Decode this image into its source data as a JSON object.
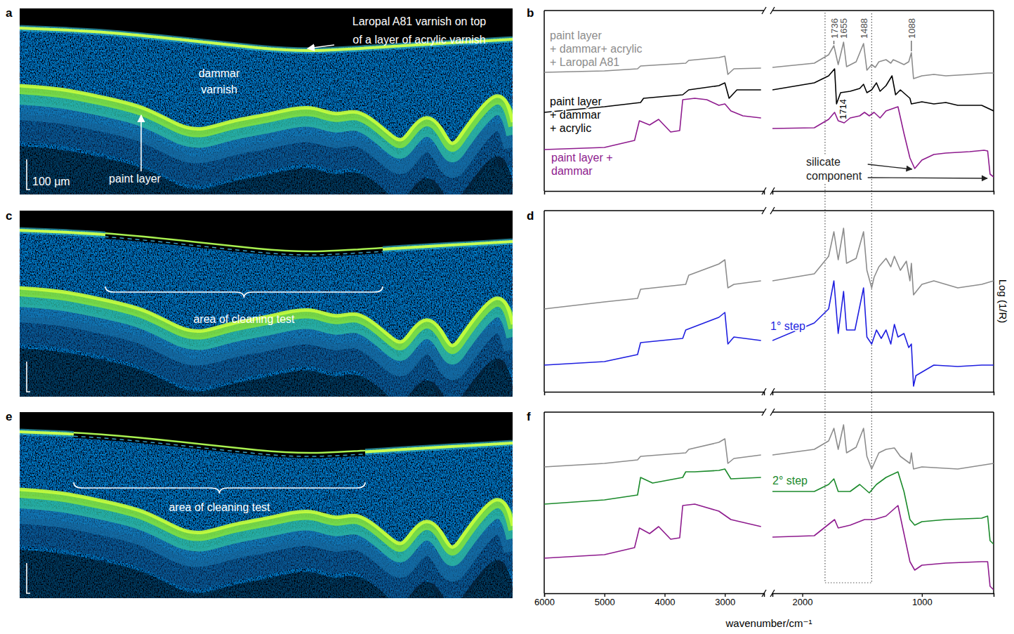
{
  "figure": {
    "highlight_region": [
      1810,
      1420
    ]
  },
  "images": [
    {
      "letter": "a",
      "labels": [
        "Laropal A81 varnish on top\nof a layer of acrylic varnish",
        "dammar\nvarnish",
        "paint layer"
      ],
      "scale_bar": "100 µm"
    },
    {
      "letter": "c",
      "bracket_label": "area of cleaning test"
    },
    {
      "letter": "e",
      "bracket_label": "area of cleaning test"
    }
  ],
  "chart_data": [
    {
      "type": "line",
      "letter": "b",
      "xlim": [
        6000,
        400
      ],
      "x_break": [
        2350,
        2250
      ],
      "ylim": [
        0,
        257
      ],
      "tick_labels": false,
      "annotations": [
        {
          "x": 1736,
          "curve": 0,
          "color": "#505050"
        },
        {
          "x": 1655,
          "curve": 0,
          "color": "#505050"
        },
        {
          "x": 1488,
          "curve": 0,
          "color": "#505050"
        },
        {
          "x": 1088,
          "curve": 0,
          "color": "#505050"
        },
        {
          "x": 1714,
          "curve": 1,
          "color": "#000000"
        }
      ],
      "callout": {
        "text": "silicate\ncomponent",
        "points_to": [
          1060,
          430
        ]
      },
      "series": [
        {
          "name": "paint layer\n+ dammar+ acrylic\n+ Laropal A81",
          "color": "#8c8c8c",
          "x": [
            6000,
            5000,
            4450,
            4400,
            3650,
            3600,
            3100,
            3000,
            2950,
            2850,
            2400,
            2250,
            1900,
            1780,
            1736,
            1700,
            1655,
            1630,
            1550,
            1488,
            1460,
            1420,
            1390,
            1360,
            1300,
            1260,
            1240,
            1200,
            1150,
            1110,
            1088,
            1070,
            1000,
            900,
            800,
            600,
            450,
            400
          ],
          "values": [
            169,
            171,
            174,
            178,
            182,
            186,
            190,
            192,
            166,
            174,
            175,
            176,
            182,
            194,
            207,
            180,
            212,
            177,
            184,
            210,
            172,
            180,
            176,
            184,
            187,
            182,
            187,
            184,
            180,
            184,
            197,
            160,
            164,
            166,
            164,
            166,
            168,
            168
          ]
        },
        {
          "name": "paint layer\n+ dammar\n+ acrylic",
          "color": "#000000",
          "x": [
            6000,
            5000,
            4400,
            4350,
            3700,
            3600,
            3100,
            3000,
            2930,
            2800,
            2400,
            2250,
            1900,
            1780,
            1730,
            1714,
            1680,
            1600,
            1520,
            1488,
            1460,
            1420,
            1380,
            1350,
            1300,
            1250,
            1220,
            1180,
            1100,
            1088,
            1000,
            900,
            800,
            700,
            500,
            400
          ],
          "values": [
            112,
            120,
            126,
            132,
            137,
            144,
            150,
            154,
            132,
            144,
            144,
            144,
            154,
            164,
            174,
            124,
            140,
            142,
            146,
            152,
            140,
            144,
            154,
            142,
            150,
            164,
            137,
            144,
            132,
            124,
            127,
            124,
            126,
            122,
            122,
            114
          ]
        },
        {
          "name": "paint layer +\ndammar",
          "color": "#8e1b8e",
          "x": [
            6000,
            5000,
            4500,
            4420,
            4250,
            4100,
            3900,
            3750,
            3700,
            3500,
            3300,
            3100,
            3000,
            2900,
            2700,
            2400,
            2250,
            1900,
            1780,
            1730,
            1700,
            1650,
            1600,
            1520,
            1480,
            1440,
            1400,
            1350,
            1300,
            1250,
            1200,
            1150,
            1100,
            1060,
            1000,
            900,
            800,
            600,
            480,
            450,
            430,
            400
          ],
          "values": [
            59,
            62,
            72,
            100,
            94,
            102,
            84,
            86,
            130,
            132,
            130,
            122,
            124,
            114,
            107,
            104,
            89,
            90,
            102,
            112,
            100,
            97,
            104,
            107,
            112,
            107,
            112,
            104,
            114,
            117,
            120,
            82,
            47,
            32,
            44,
            52,
            54,
            56,
            58,
            57,
            24,
            20
          ]
        }
      ]
    },
    {
      "type": "line",
      "letter": "d",
      "xlim": [
        6000,
        400
      ],
      "x_break": [
        2350,
        2250
      ],
      "ylim": [
        0,
        258
      ],
      "tick_labels": false,
      "ylabel": "Log (1/R)",
      "series": [
        {
          "color": "#8c8c8c",
          "x": [
            6000,
            5000,
            4450,
            4400,
            3650,
            3600,
            3100,
            3000,
            2950,
            2850,
            2400,
            2250,
            1900,
            1780,
            1736,
            1700,
            1655,
            1630,
            1550,
            1488,
            1460,
            1420,
            1400,
            1360,
            1300,
            1260,
            1230,
            1180,
            1130,
            1100,
            1088,
            1070,
            1000,
            900,
            700,
            500,
            400
          ],
          "values": [
            118,
            128,
            133,
            146,
            153,
            166,
            182,
            188,
            148,
            153,
            158,
            158,
            168,
            193,
            228,
            188,
            233,
            183,
            190,
            228,
            173,
            148,
            163,
            178,
            190,
            178,
            193,
            173,
            186,
            158,
            183,
            138,
            153,
            158,
            148,
            153,
            158
          ]
        },
        {
          "name": "1° step",
          "color": "#1f1fe0",
          "x": [
            6000,
            5000,
            4450,
            4400,
            3700,
            3650,
            3100,
            3000,
            2950,
            2850,
            2400,
            2250,
            1900,
            1780,
            1736,
            1700,
            1655,
            1630,
            1560,
            1488,
            1460,
            1420,
            1380,
            1340,
            1300,
            1260,
            1230,
            1200,
            1150,
            1110,
            1088,
            1070,
            1050,
            1000,
            900,
            700,
            500,
            400
          ],
          "values": [
            38,
            43,
            53,
            70,
            76,
            88,
            106,
            113,
            68,
            78,
            73,
            73,
            98,
            118,
            158,
            83,
            143,
            88,
            88,
            148,
            78,
            68,
            88,
            76,
            88,
            68,
            96,
            78,
            83,
            63,
            68,
            8,
            23,
            28,
            38,
            36,
            38,
            38
          ]
        }
      ]
    },
    {
      "type": "line",
      "letter": "f",
      "xlim": [
        6000,
        400
      ],
      "x_break": [
        2350,
        2250
      ],
      "ylim": [
        0,
        258
      ],
      "tick_labels": "x",
      "xticks": [
        6000,
        5000,
        4000,
        3000,
        2000,
        1000
      ],
      "xlabel": "wavenumber/cm⁻¹",
      "series": [
        {
          "color": "#8c8c8c",
          "x": [
            6000,
            5000,
            4450,
            4400,
            3650,
            3600,
            3100,
            3000,
            2950,
            2850,
            2400,
            2250,
            1900,
            1780,
            1736,
            1700,
            1655,
            1630,
            1550,
            1488,
            1460,
            1420,
            1360,
            1300,
            1230,
            1180,
            1100,
            1088,
            1070,
            1000,
            700,
            400
          ],
          "values": [
            180,
            185,
            190,
            195,
            200,
            205,
            215,
            220,
            185,
            192,
            197,
            197,
            205,
            217,
            235,
            205,
            240,
            200,
            208,
            235,
            195,
            177,
            200,
            205,
            207,
            195,
            185,
            200,
            177,
            180,
            177,
            185
          ]
        },
        {
          "name": "2° step",
          "color": "#1b8a2b",
          "x": [
            6000,
            5000,
            4450,
            4400,
            4200,
            3700,
            3650,
            3500,
            3100,
            3000,
            2900,
            2400,
            2250,
            1900,
            1780,
            1736,
            1700,
            1600,
            1520,
            1440,
            1380,
            1300,
            1200,
            1150,
            1100,
            1060,
            1000,
            800,
            500,
            450,
            430,
            400
          ],
          "values": [
            127,
            133,
            140,
            165,
            157,
            165,
            173,
            173,
            175,
            177,
            163,
            165,
            145,
            145,
            155,
            163,
            145,
            145,
            155,
            143,
            155,
            165,
            173,
            145,
            105,
            97,
            102,
            105,
            107,
            110,
            75,
            70
          ]
        },
        {
          "color": "#8e1b8e",
          "x": [
            6000,
            5000,
            4500,
            4420,
            4250,
            4100,
            3900,
            3750,
            3700,
            3500,
            3100,
            2900,
            2400,
            2250,
            1900,
            1730,
            1700,
            1600,
            1480,
            1400,
            1300,
            1200,
            1150,
            1100,
            1060,
            1000,
            800,
            500,
            450,
            430,
            400
          ],
          "values": [
            50,
            55,
            65,
            93,
            85,
            95,
            77,
            79,
            125,
            127,
            117,
            105,
            95,
            80,
            82,
            105,
            93,
            97,
            105,
            105,
            110,
            125,
            85,
            45,
            33,
            40,
            43,
            45,
            45,
            10,
            5
          ]
        }
      ]
    }
  ]
}
